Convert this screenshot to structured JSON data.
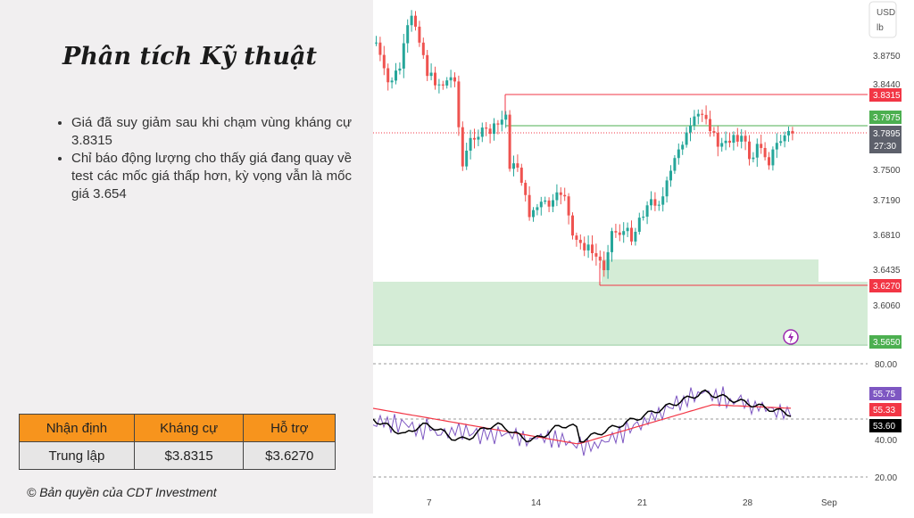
{
  "title": "Phân tích Kỹ thuật",
  "bullets": [
    "Giá đã suy giảm sau khi chạm vùng kháng cự 3.8315",
    "Chỉ báo động lượng cho thấy giá đang quay về test các mốc giá thấp hơn, kỳ vọng vẫn là mốc giá 3.654"
  ],
  "summary_table": {
    "headers": [
      "Nhận định",
      "Kháng cự",
      "Hỗ trợ"
    ],
    "row": [
      "Trung lập",
      "$3.8315",
      "$3.6270"
    ]
  },
  "copyright": "© Bản quyền của CDT Investment",
  "chart_data": {
    "type": "candlestick",
    "currency": "USD",
    "unit": "lb",
    "y_ticks": [
      "3.8750",
      "3.8440",
      "3.7500",
      "3.7190",
      "3.6810",
      "3.6435",
      "3.6060"
    ],
    "x_ticks": [
      "7",
      "14",
      "21",
      "28",
      "Sep"
    ],
    "price_badges": {
      "resistance": "3.8315",
      "upper_green": "3.7975",
      "last_price": "3.7895",
      "countdown": "27:30",
      "support": "3.6270",
      "lower_green": "3.5650"
    },
    "colors": {
      "up": "#26a69a",
      "down": "#ef5350",
      "resistance": "#f23645",
      "support_zone": "#d4ecd6",
      "rsi": "#7e57c2",
      "ema": "#f23645",
      "avg": "#000000"
    },
    "indicator": {
      "y_ticks": [
        "80.00",
        "40.00",
        "20.00"
      ],
      "badges": [
        "55.75",
        "55.33",
        "53.60"
      ]
    }
  }
}
